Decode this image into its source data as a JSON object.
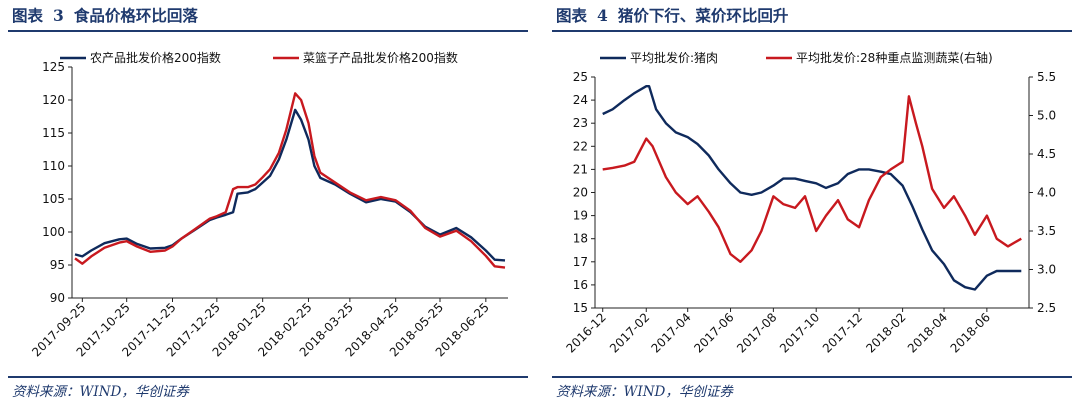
{
  "figures": [
    {
      "title_label": "图表",
      "title_num": "3",
      "title_text": "食品价格环比回落",
      "source": "资料来源：WIND，华创证券"
    },
    {
      "title_label": "图表",
      "title_num": "4",
      "title_text": "猪价下行、菜价环比回升",
      "source": "资料来源：WIND，华创证券"
    }
  ],
  "colors": {
    "navy": "#0f2a5c",
    "red": "#c8191f",
    "rule": "#1f3a6e"
  },
  "chart_data": [
    {
      "type": "line",
      "title": "",
      "xlabel": "",
      "ylabel": "",
      "ylim": [
        90,
        125
      ],
      "yticks": [
        90,
        95,
        100,
        105,
        110,
        115,
        120,
        125
      ],
      "xlim": [
        "2017-09-18",
        "2018-07-10"
      ],
      "xticks": [
        "2017-09-25",
        "2017-10-25",
        "2017-11-25",
        "2017-12-25",
        "2018-01-25",
        "2018-02-25",
        "2018-03-25",
        "2018-04-25",
        "2018-05-25",
        "2018-06-25"
      ],
      "grid": false,
      "legend": "top",
      "series": [
        {
          "name": "农产品批发价格200指数",
          "color": "#0f2a5c",
          "points": [
            [
              "2017-09-20",
              96.6
            ],
            [
              "2017-09-25",
              96.3
            ],
            [
              "2017-10-01",
              97.2
            ],
            [
              "2017-10-10",
              98.3
            ],
            [
              "2017-10-20",
              98.9
            ],
            [
              "2017-10-25",
              99.0
            ],
            [
              "2017-11-01",
              98.2
            ],
            [
              "2017-11-10",
              97.5
            ],
            [
              "2017-11-20",
              97.6
            ],
            [
              "2017-11-25",
              98.0
            ],
            [
              "2017-12-01",
              99.0
            ],
            [
              "2017-12-10",
              100.3
            ],
            [
              "2017-12-20",
              101.8
            ],
            [
              "2017-12-25",
              102.2
            ],
            [
              "2017-12-31",
              102.6
            ],
            [
              "2018-01-05",
              103.0
            ],
            [
              "2018-01-08",
              105.8
            ],
            [
              "2018-01-15",
              106.0
            ],
            [
              "2018-01-20",
              106.5
            ],
            [
              "2018-01-25",
              107.5
            ],
            [
              "2018-01-30",
              108.5
            ],
            [
              "2018-02-05",
              111.0
            ],
            [
              "2018-02-10",
              114.0
            ],
            [
              "2018-02-16",
              118.5
            ],
            [
              "2018-02-20",
              117.0
            ],
            [
              "2018-02-25",
              114.0
            ],
            [
              "2018-03-01",
              110.0
            ],
            [
              "2018-03-05",
              108.2
            ],
            [
              "2018-03-15",
              107.2
            ],
            [
              "2018-03-25",
              105.8
            ],
            [
              "2018-04-05",
              104.5
            ],
            [
              "2018-04-15",
              105.0
            ],
            [
              "2018-04-25",
              104.6
            ],
            [
              "2018-05-05",
              103.0
            ],
            [
              "2018-05-15",
              100.8
            ],
            [
              "2018-05-25",
              99.6
            ],
            [
              "2018-06-05",
              100.6
            ],
            [
              "2018-06-15",
              99.2
            ],
            [
              "2018-06-25",
              97.2
            ],
            [
              "2018-07-01",
              95.8
            ],
            [
              "2018-07-08",
              95.7
            ]
          ]
        },
        {
          "name": "菜篮子产品批发价格200指数",
          "color": "#c8191f",
          "points": [
            [
              "2017-09-20",
              96.0
            ],
            [
              "2017-09-25",
              95.2
            ],
            [
              "2017-10-01",
              96.3
            ],
            [
              "2017-10-10",
              97.6
            ],
            [
              "2017-10-20",
              98.4
            ],
            [
              "2017-10-25",
              98.6
            ],
            [
              "2017-11-01",
              97.8
            ],
            [
              "2017-11-10",
              97.0
            ],
            [
              "2017-11-20",
              97.2
            ],
            [
              "2017-11-25",
              97.8
            ],
            [
              "2017-12-01",
              99.0
            ],
            [
              "2017-12-10",
              100.4
            ],
            [
              "2017-12-20",
              102.0
            ],
            [
              "2017-12-25",
              102.4
            ],
            [
              "2017-12-31",
              103.0
            ],
            [
              "2018-01-05",
              106.5
            ],
            [
              "2018-01-08",
              106.8
            ],
            [
              "2018-01-15",
              106.8
            ],
            [
              "2018-01-20",
              107.2
            ],
            [
              "2018-01-25",
              108.3
            ],
            [
              "2018-01-30",
              109.5
            ],
            [
              "2018-02-05",
              112.0
            ],
            [
              "2018-02-10",
              115.5
            ],
            [
              "2018-02-16",
              121.0
            ],
            [
              "2018-02-20",
              120.0
            ],
            [
              "2018-02-25",
              116.5
            ],
            [
              "2018-03-01",
              111.5
            ],
            [
              "2018-03-05",
              109.0
            ],
            [
              "2018-03-15",
              107.5
            ],
            [
              "2018-03-25",
              106.0
            ],
            [
              "2018-04-05",
              104.8
            ],
            [
              "2018-04-15",
              105.3
            ],
            [
              "2018-04-25",
              104.8
            ],
            [
              "2018-05-05",
              103.2
            ],
            [
              "2018-05-15",
              100.6
            ],
            [
              "2018-05-25",
              99.3
            ],
            [
              "2018-06-05",
              100.2
            ],
            [
              "2018-06-15",
              98.6
            ],
            [
              "2018-06-25",
              96.4
            ],
            [
              "2018-07-01",
              94.8
            ],
            [
              "2018-07-08",
              94.6
            ]
          ]
        }
      ]
    },
    {
      "type": "line",
      "title": "",
      "xlabel": "",
      "ylabel": "",
      "ylim": [
        15,
        25
      ],
      "yticks": [
        15,
        16,
        17,
        18,
        19,
        20,
        21,
        22,
        23,
        24,
        25
      ],
      "y2lim": [
        2.5,
        5.5
      ],
      "y2ticks": [
        2.5,
        3.0,
        3.5,
        4.0,
        4.5,
        5.0,
        5.5
      ],
      "xlim": [
        "2016-11-20",
        "2018-07-31"
      ],
      "xticks": [
        "2016-12",
        "2017-02",
        "2017-04",
        "2017-06",
        "2017-08",
        "2017-10",
        "2017-12",
        "2018-02",
        "2018-04",
        "2018-06"
      ],
      "grid": false,
      "legend": "top",
      "series": [
        {
          "name": "平均批发价:猪肉",
          "axis": "left",
          "color": "#0f2a5c",
          "points": [
            [
              "2016-12-01",
              23.4
            ],
            [
              "2016-12-15",
              23.6
            ],
            [
              "2017-01-01",
              24.0
            ],
            [
              "2017-01-15",
              24.3
            ],
            [
              "2017-02-01",
              24.6
            ],
            [
              "2017-02-05",
              24.6
            ],
            [
              "2017-02-15",
              23.6
            ],
            [
              "2017-03-01",
              23.0
            ],
            [
              "2017-03-15",
              22.6
            ],
            [
              "2017-04-01",
              22.4
            ],
            [
              "2017-04-15",
              22.1
            ],
            [
              "2017-05-01",
              21.6
            ],
            [
              "2017-05-15",
              21.0
            ],
            [
              "2017-06-01",
              20.4
            ],
            [
              "2017-06-15",
              20.0
            ],
            [
              "2017-07-01",
              19.9
            ],
            [
              "2017-07-15",
              20.0
            ],
            [
              "2017-08-01",
              20.3
            ],
            [
              "2017-08-15",
              20.6
            ],
            [
              "2017-09-01",
              20.6
            ],
            [
              "2017-09-15",
              20.5
            ],
            [
              "2017-10-01",
              20.4
            ],
            [
              "2017-10-15",
              20.2
            ],
            [
              "2017-11-01",
              20.4
            ],
            [
              "2017-11-15",
              20.8
            ],
            [
              "2017-12-01",
              21.0
            ],
            [
              "2017-12-15",
              21.0
            ],
            [
              "2018-01-01",
              20.9
            ],
            [
              "2018-01-15",
              20.8
            ],
            [
              "2018-02-01",
              20.3
            ],
            [
              "2018-02-15",
              19.4
            ],
            [
              "2018-03-01",
              18.4
            ],
            [
              "2018-03-15",
              17.5
            ],
            [
              "2018-04-01",
              16.9
            ],
            [
              "2018-04-15",
              16.2
            ],
            [
              "2018-05-01",
              15.9
            ],
            [
              "2018-05-15",
              15.8
            ],
            [
              "2018-06-01",
              16.4
            ],
            [
              "2018-06-15",
              16.6
            ],
            [
              "2018-07-01",
              16.6
            ],
            [
              "2018-07-20",
              16.6
            ]
          ]
        },
        {
          "name": "平均批发价:28种重点监测蔬菜(右轴)",
          "axis": "right",
          "color": "#c8191f",
          "points": [
            [
              "2016-12-01",
              4.3
            ],
            [
              "2016-12-15",
              4.32
            ],
            [
              "2017-01-01",
              4.35
            ],
            [
              "2017-01-15",
              4.4
            ],
            [
              "2017-02-01",
              4.7
            ],
            [
              "2017-02-10",
              4.6
            ],
            [
              "2017-03-01",
              4.2
            ],
            [
              "2017-03-15",
              4.0
            ],
            [
              "2017-04-01",
              3.85
            ],
            [
              "2017-04-15",
              3.95
            ],
            [
              "2017-05-01",
              3.75
            ],
            [
              "2017-05-15",
              3.55
            ],
            [
              "2017-06-01",
              3.2
            ],
            [
              "2017-06-15",
              3.1
            ],
            [
              "2017-07-01",
              3.25
            ],
            [
              "2017-07-15",
              3.5
            ],
            [
              "2017-08-01",
              3.95
            ],
            [
              "2017-08-15",
              3.85
            ],
            [
              "2017-09-01",
              3.8
            ],
            [
              "2017-09-15",
              3.95
            ],
            [
              "2017-10-01",
              3.5
            ],
            [
              "2017-10-15",
              3.7
            ],
            [
              "2017-11-01",
              3.9
            ],
            [
              "2017-11-15",
              3.65
            ],
            [
              "2017-12-01",
              3.55
            ],
            [
              "2017-12-15",
              3.9
            ],
            [
              "2018-01-01",
              4.2
            ],
            [
              "2018-01-15",
              4.3
            ],
            [
              "2018-02-01",
              4.4
            ],
            [
              "2018-02-10",
              5.25
            ],
            [
              "2018-02-20",
              4.9
            ],
            [
              "2018-03-01",
              4.6
            ],
            [
              "2018-03-15",
              4.05
            ],
            [
              "2018-04-01",
              3.8
            ],
            [
              "2018-04-15",
              3.95
            ],
            [
              "2018-05-01",
              3.7
            ],
            [
              "2018-05-15",
              3.45
            ],
            [
              "2018-06-01",
              3.7
            ],
            [
              "2018-06-15",
              3.4
            ],
            [
              "2018-07-01",
              3.3
            ],
            [
              "2018-07-20",
              3.4
            ]
          ]
        }
      ]
    }
  ]
}
